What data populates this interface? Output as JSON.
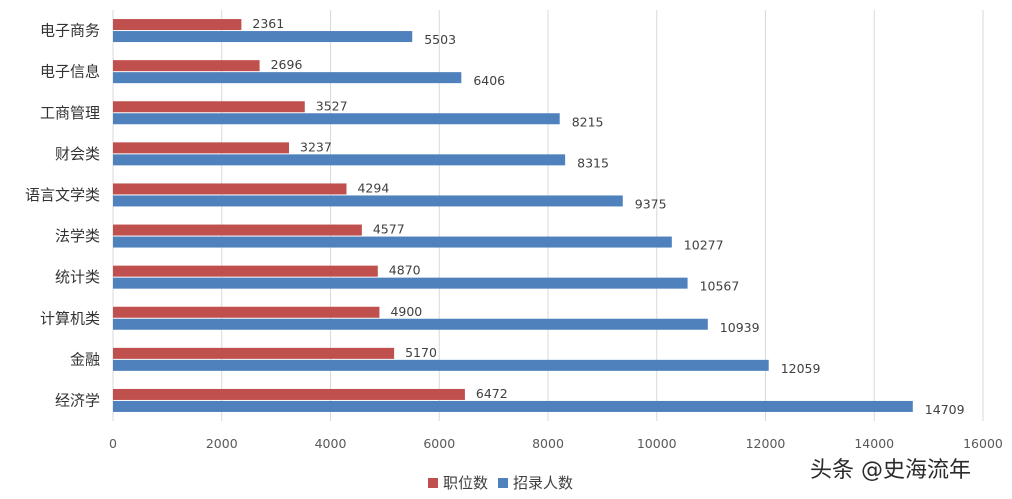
{
  "chart_data": {
    "type": "bar",
    "orientation": "horizontal",
    "categories": [
      "电子商务",
      "电子信息",
      "工商管理",
      "财会类",
      "语言文学类",
      "法学类",
      "统计类",
      "计算机类",
      "金融",
      "经济学"
    ],
    "series": [
      {
        "name": "职位数",
        "color": "#c0504d",
        "values": [
          2361,
          2696,
          3527,
          3237,
          4294,
          4577,
          4870,
          4900,
          5170,
          6472
        ]
      },
      {
        "name": "招录人数",
        "color": "#4f81bd",
        "values": [
          5503,
          6406,
          8215,
          8315,
          9375,
          10277,
          10567,
          10939,
          12059,
          14709
        ]
      }
    ],
    "xlim": [
      0,
      16000
    ],
    "xticks": [
      "0",
      "2000",
      "4000",
      "6000",
      "8000",
      "10000",
      "12000",
      "14000",
      "16000"
    ],
    "grid": true,
    "legend_position": "bottom"
  },
  "watermark": "头条 @史海流年"
}
